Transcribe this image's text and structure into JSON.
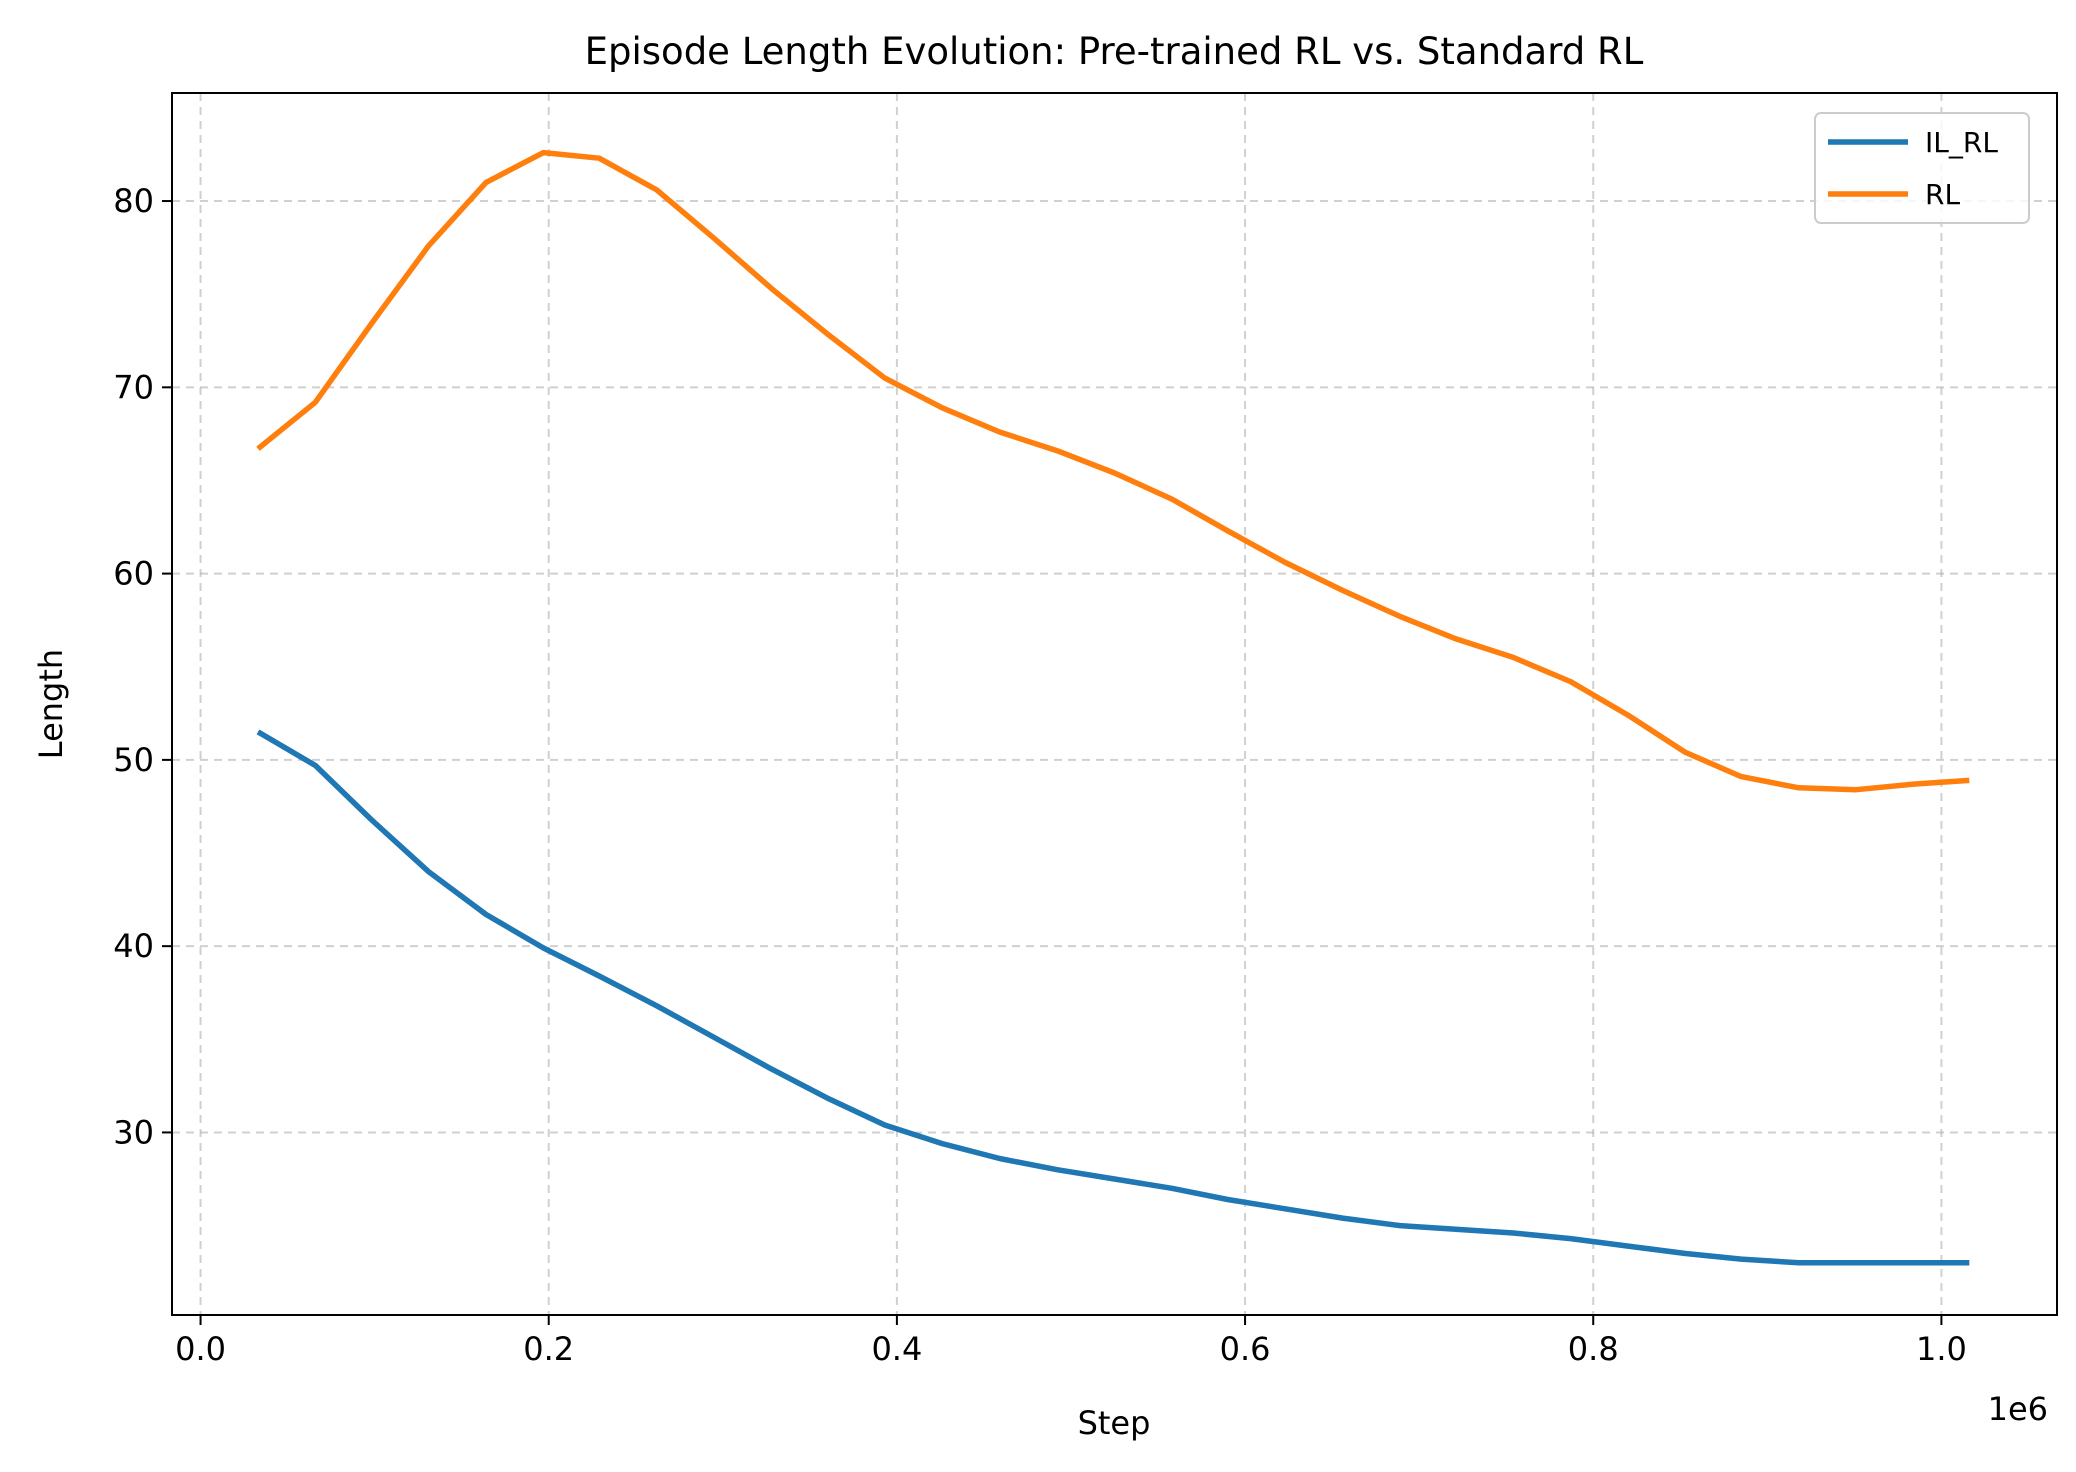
{
  "chart_data": {
    "type": "line",
    "title": "Episode Length Evolution: Pre-trained RL vs. Standard RL",
    "xlabel": "Step",
    "ylabel": "Length",
    "x_offset_label": "1e6",
    "xlim": [
      -0.0164,
      1.0664
    ],
    "ylim": [
      20.2,
      85.8
    ],
    "xticks": [
      0.0,
      0.2,
      0.4,
      0.6,
      0.8,
      1.0
    ],
    "xtick_labels": [
      "0.0",
      "0.2",
      "0.4",
      "0.6",
      "0.8",
      "1.0"
    ],
    "yticks": [
      30,
      40,
      50,
      60,
      70,
      80
    ],
    "ytick_labels": [
      "30",
      "40",
      "50",
      "60",
      "70",
      "80"
    ],
    "grid": true,
    "legend_position": "top-right",
    "x": [
      0.033,
      0.066,
      0.098,
      0.131,
      0.164,
      0.197,
      0.229,
      0.262,
      0.295,
      0.328,
      0.361,
      0.393,
      0.426,
      0.459,
      0.492,
      0.525,
      0.558,
      0.59,
      0.623,
      0.656,
      0.689,
      0.721,
      0.754,
      0.787,
      0.82,
      0.853,
      0.885,
      0.918,
      0.951,
      0.984,
      1.016
    ],
    "series": [
      {
        "name": "IL_RL",
        "color": "#1f77b4",
        "values": [
          51.5,
          49.7,
          46.8,
          44.0,
          41.7,
          39.9,
          38.4,
          36.8,
          35.1,
          33.4,
          31.8,
          30.4,
          29.4,
          28.6,
          28.0,
          27.5,
          27.0,
          26.4,
          25.9,
          25.4,
          25.0,
          24.8,
          24.6,
          24.3,
          23.9,
          23.5,
          23.2,
          23.0,
          23.0,
          23.0,
          23.0
        ]
      },
      {
        "name": "RL",
        "color": "#ff7f0e",
        "values": [
          66.7,
          69.2,
          73.4,
          77.6,
          81.0,
          82.6,
          82.3,
          80.6,
          78.0,
          75.3,
          72.8,
          70.5,
          68.9,
          67.6,
          66.6,
          65.4,
          64.0,
          62.3,
          60.6,
          59.1,
          57.7,
          56.5,
          55.5,
          54.2,
          52.4,
          50.4,
          49.1,
          48.5,
          48.4,
          48.7,
          48.9
        ]
      }
    ]
  }
}
